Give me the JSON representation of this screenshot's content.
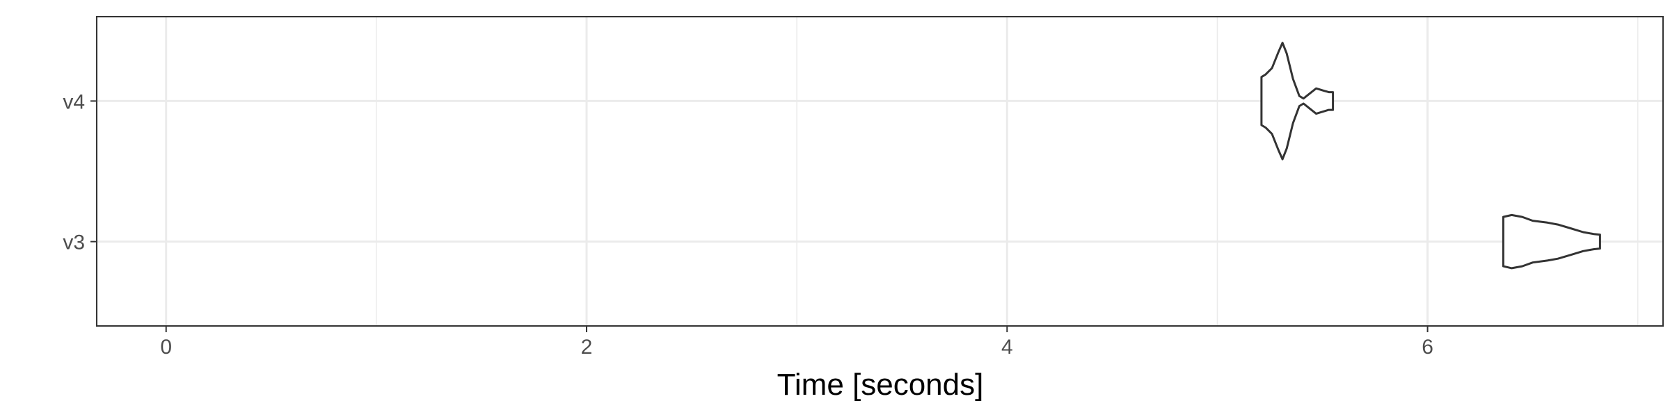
{
  "chart_data": {
    "type": "violin",
    "title": "",
    "xlabel": "Time [seconds]",
    "ylabel": "",
    "xlim": [
      -0.33,
      7.12
    ],
    "x_ticks": [
      0,
      2,
      4,
      6
    ],
    "x_minor_gridlines": [
      1,
      3,
      5,
      7
    ],
    "categories": [
      "v3",
      "v4"
    ],
    "grid": true,
    "series": [
      {
        "name": "v4",
        "min": 5.21,
        "max": 5.55,
        "profile": [
          [
            5.21,
            0.38
          ],
          [
            5.23,
            0.42
          ],
          [
            5.26,
            0.52
          ],
          [
            5.29,
            0.77
          ],
          [
            5.31,
            0.92
          ],
          [
            5.33,
            0.75
          ],
          [
            5.36,
            0.35
          ],
          [
            5.39,
            0.08
          ],
          [
            5.41,
            0.04
          ],
          [
            5.44,
            0.12
          ],
          [
            5.47,
            0.2
          ],
          [
            5.5,
            0.17
          ],
          [
            5.53,
            0.14
          ],
          [
            5.55,
            0.14
          ]
        ]
      },
      {
        "name": "v3",
        "min": 6.36,
        "max": 6.82,
        "profile": [
          [
            6.36,
            0.39
          ],
          [
            6.4,
            0.42
          ],
          [
            6.45,
            0.39
          ],
          [
            6.5,
            0.33
          ],
          [
            6.57,
            0.3
          ],
          [
            6.62,
            0.27
          ],
          [
            6.68,
            0.21
          ],
          [
            6.74,
            0.15
          ],
          [
            6.79,
            0.12
          ],
          [
            6.82,
            0.11
          ]
        ]
      }
    ]
  }
}
